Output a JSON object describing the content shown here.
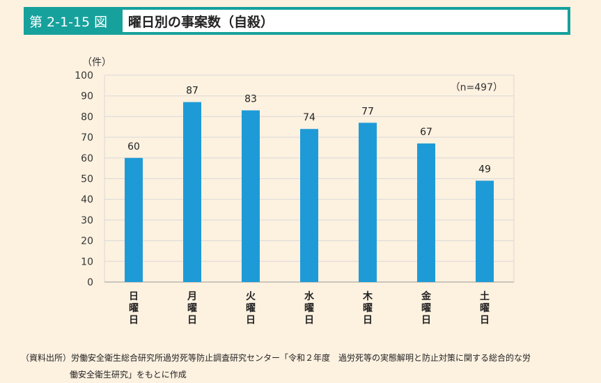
{
  "header": {
    "figure_number": "第 2-1-15 図",
    "title": "曜日別の事案数（自殺）"
  },
  "chart_data": {
    "type": "bar",
    "title": "曜日別の事案数（自殺）",
    "ylabel": "（件）",
    "note": "（n=497）",
    "categories": [
      "日曜日",
      "月曜日",
      "火曜日",
      "水曜日",
      "木曜日",
      "金曜日",
      "土曜日"
    ],
    "values": [
      60,
      87,
      83,
      74,
      77,
      67,
      49
    ],
    "ylim": [
      0,
      100
    ],
    "yticks": [
      0,
      10,
      20,
      30,
      40,
      50,
      60,
      70,
      80,
      90,
      100
    ],
    "grid": true,
    "bar_color": "#1e9bd7"
  },
  "source": {
    "line1": "（資料出所）労働安全衛生総合研究所過労死等防止調査研究センター「令和２年度　過労死等の実態解明と防止対策に関する総合的な労",
    "line2": "働安全衛生研究」をもとに作成"
  }
}
